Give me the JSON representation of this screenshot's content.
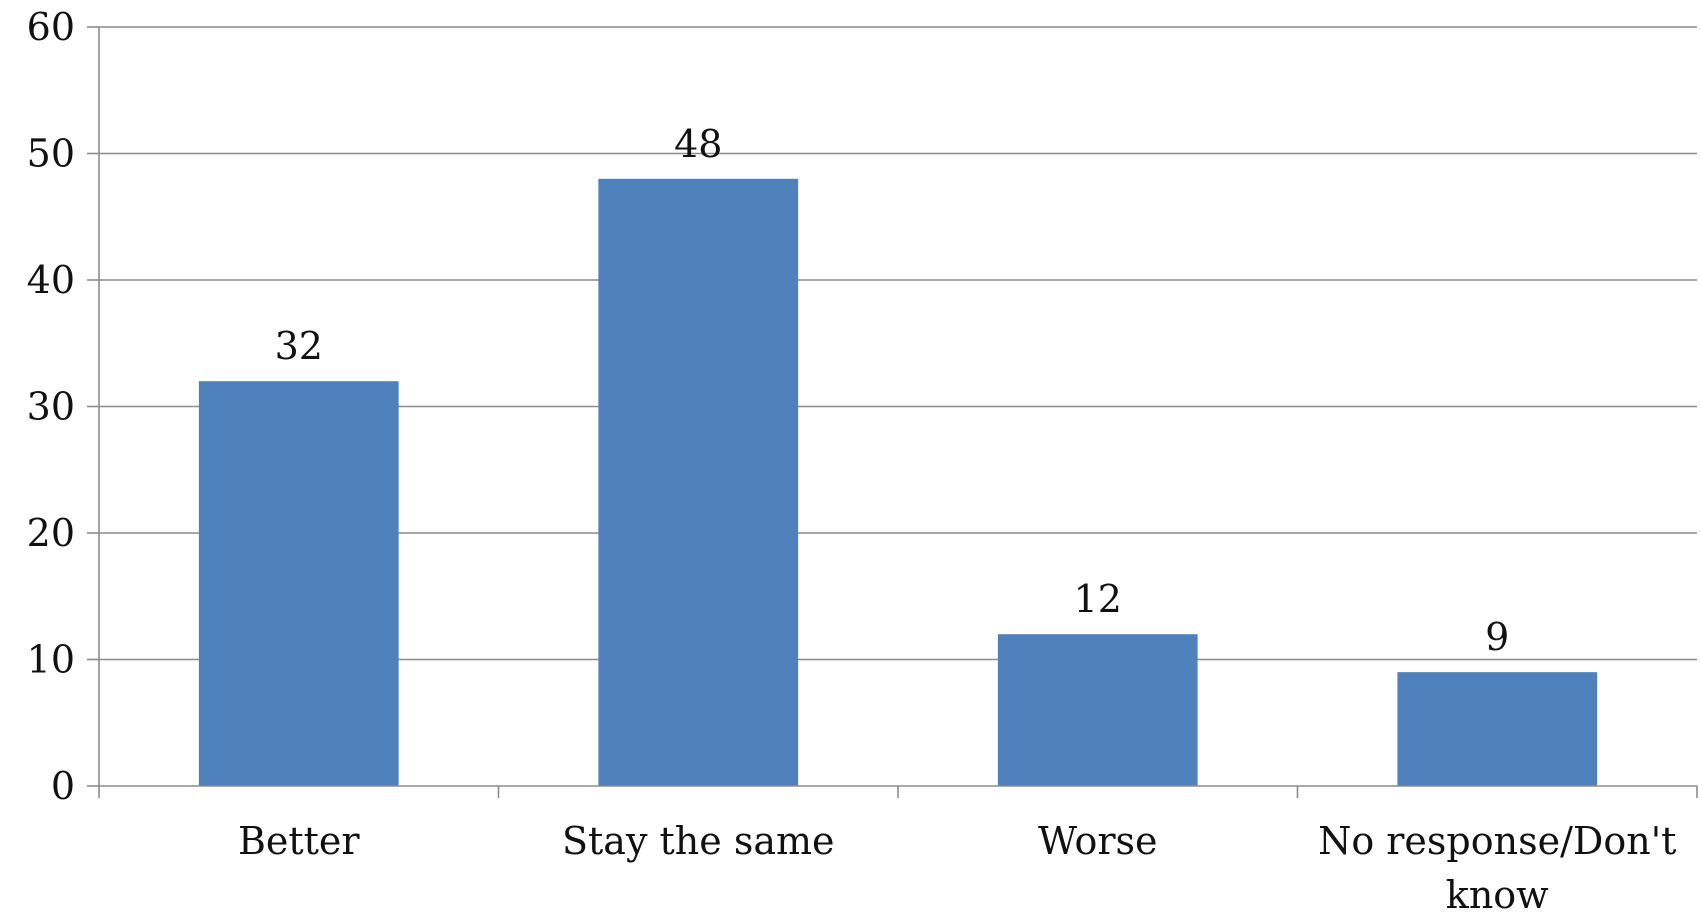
{
  "chart_data": {
    "type": "bar",
    "categories": [
      "Better",
      "Stay the same",
      "Worse",
      "No response/Don't know"
    ],
    "category_lines": [
      [
        "Better"
      ],
      [
        "Stay the same"
      ],
      [
        "Worse"
      ],
      [
        "No response/Don't",
        "know"
      ]
    ],
    "values": [
      32,
      48,
      12,
      9
    ],
    "data_labels": [
      "32",
      "48",
      "12",
      "9"
    ],
    "title": "",
    "xlabel": "",
    "ylabel": "",
    "ylim": [
      0,
      60
    ],
    "yticks": [
      0,
      10,
      20,
      30,
      40,
      50,
      60
    ],
    "grid": true,
    "legend": "none",
    "bar_color": "#4f81bd"
  }
}
